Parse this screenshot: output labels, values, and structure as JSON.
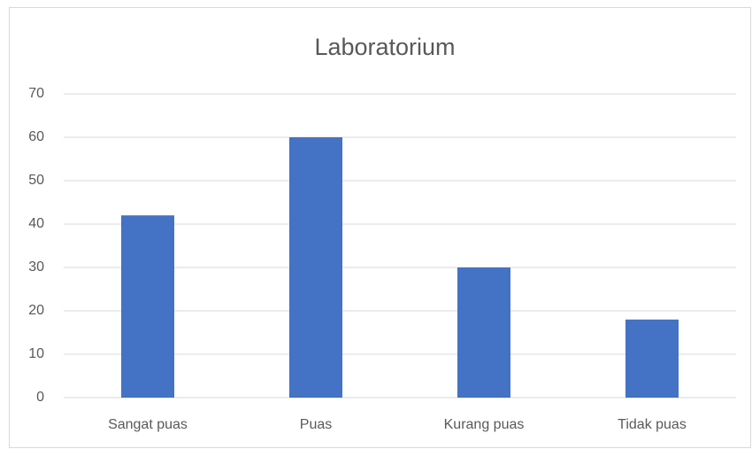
{
  "chart_data": {
    "type": "bar",
    "title": "Laboratorium",
    "categories": [
      "Sangat puas",
      "Puas",
      "Kurang puas",
      "Tidak puas"
    ],
    "values": [
      42,
      60,
      30,
      18
    ],
    "color": "#4472c4",
    "ylim": [
      0,
      70
    ],
    "yticks": [
      0,
      10,
      20,
      30,
      40,
      50,
      60,
      70
    ],
    "grid": true
  }
}
